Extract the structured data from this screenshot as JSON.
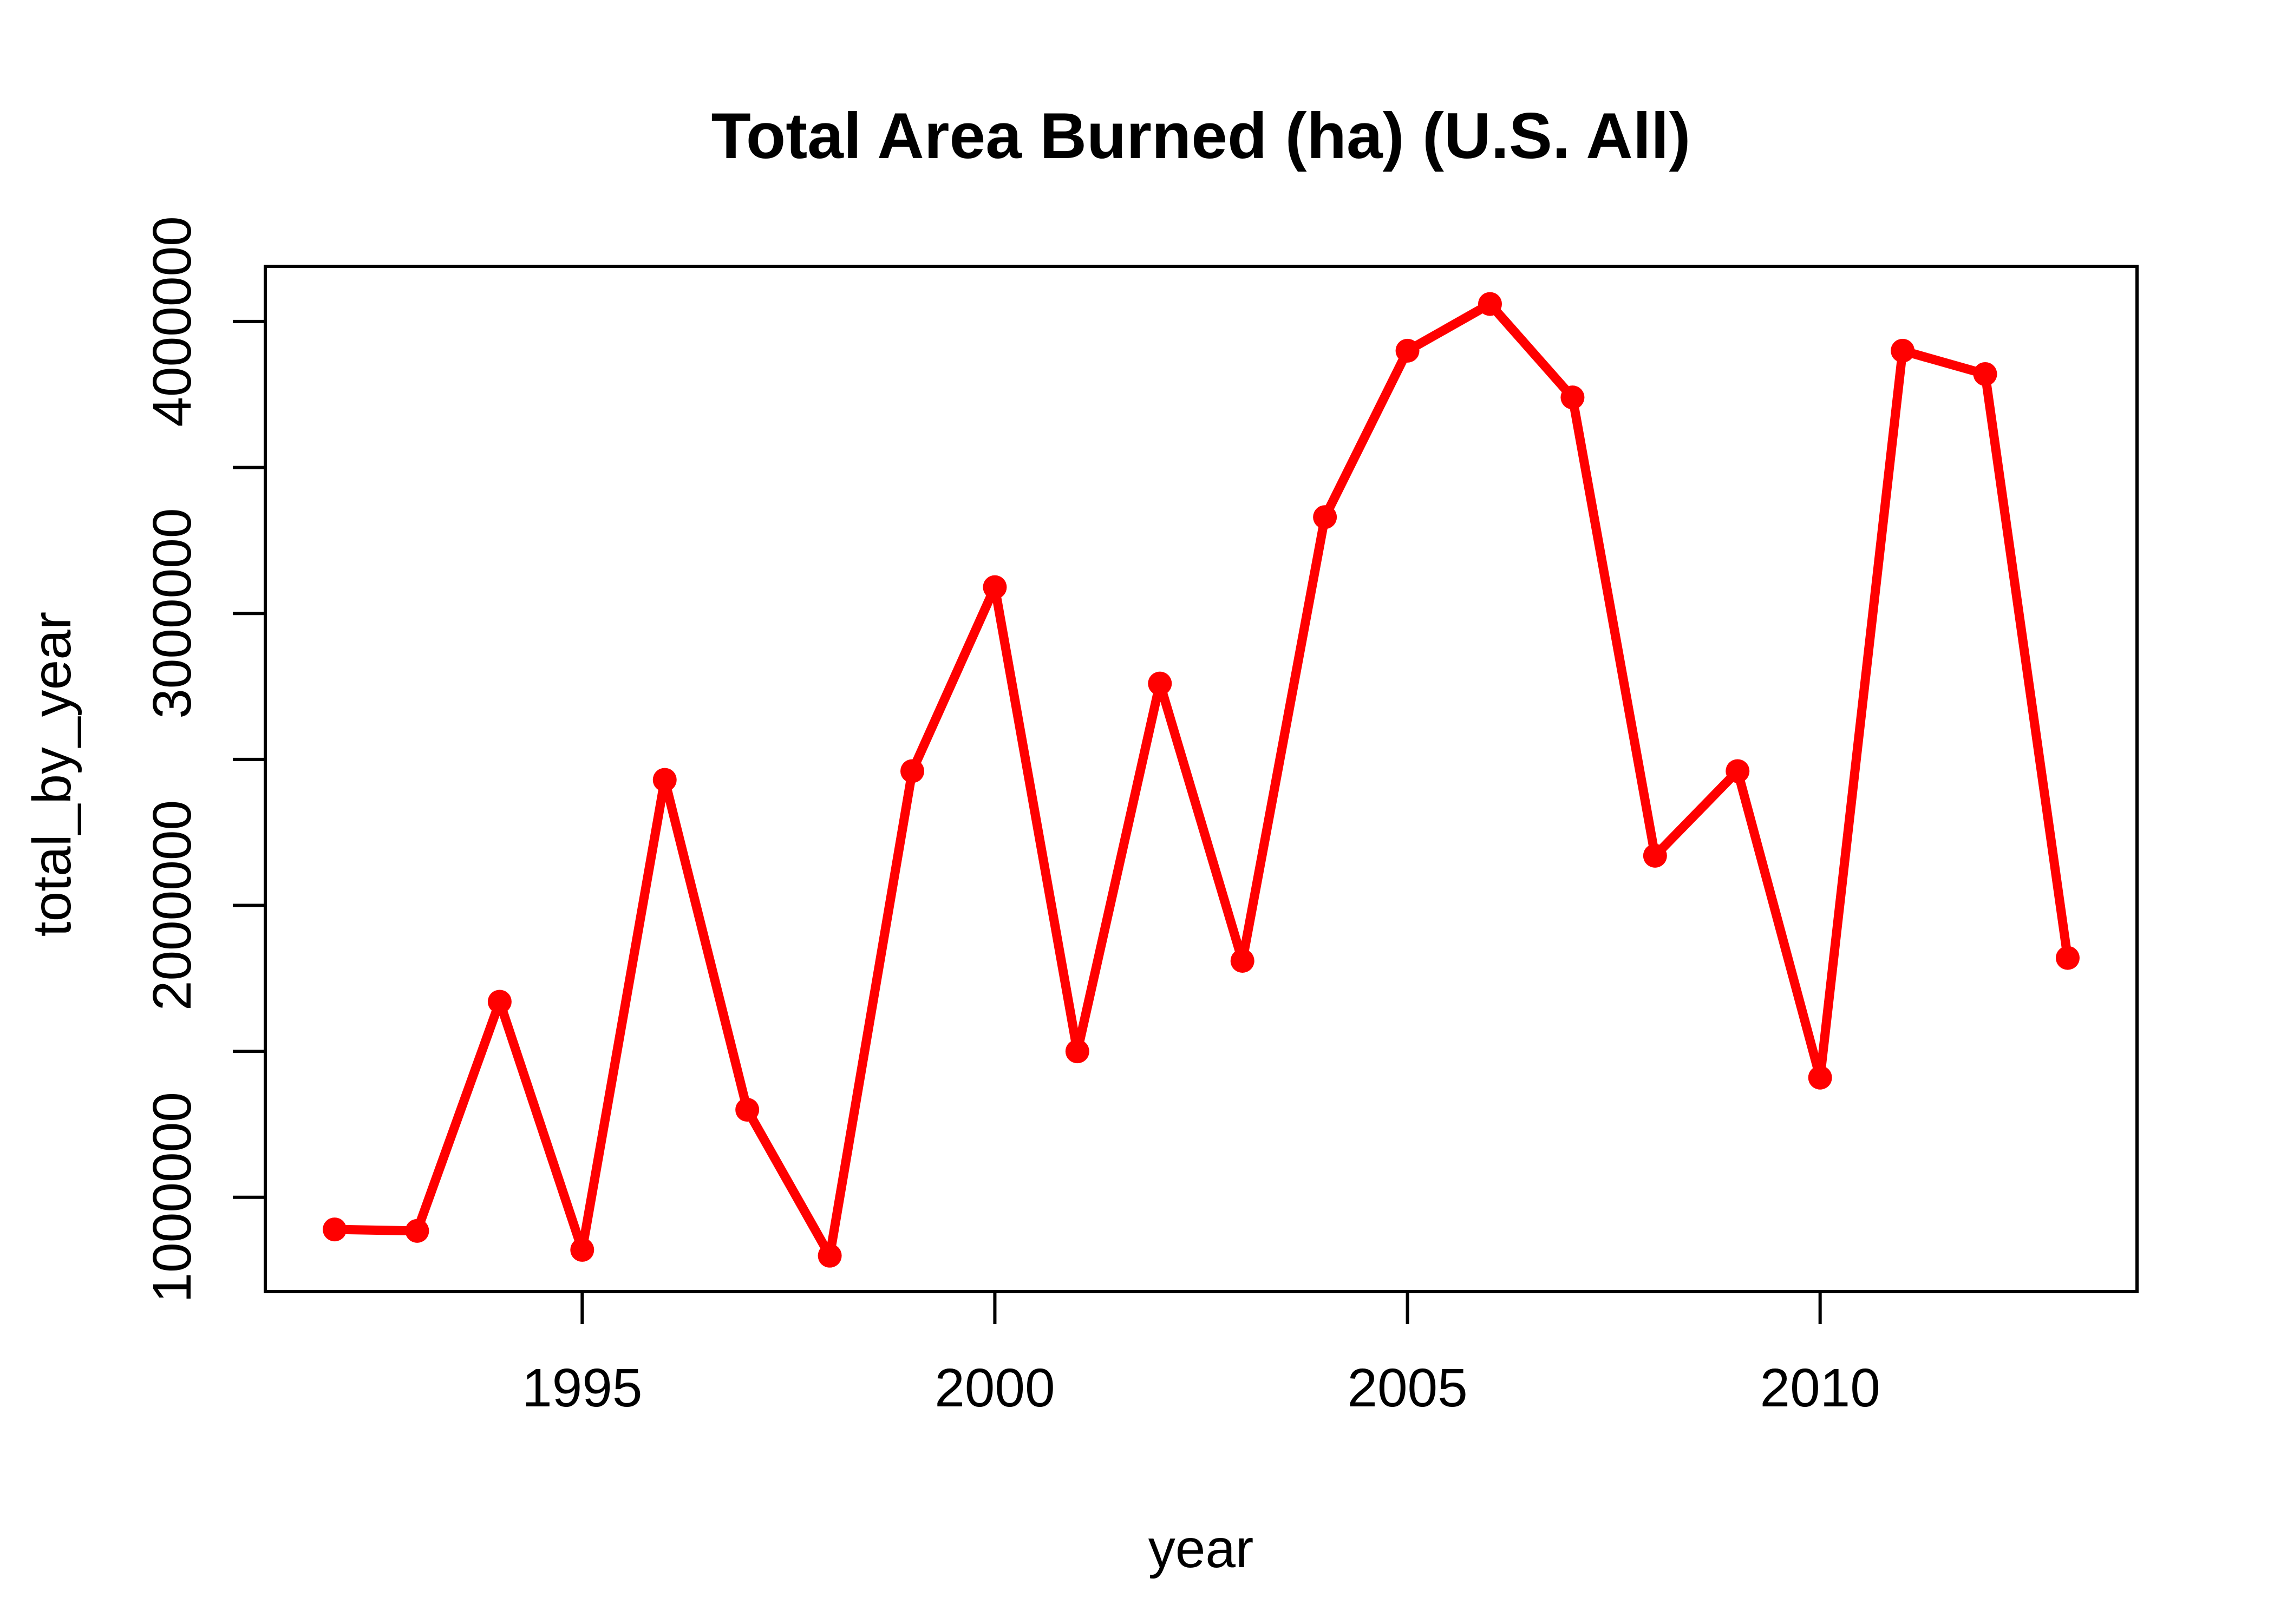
{
  "chart": {
    "title": "Total Area Burned (ha) (U.S. All)",
    "xlabel": "year",
    "ylabel": "total_by_year"
  },
  "chart_data": {
    "type": "line",
    "title": "Total Area Burned (ha) (U.S. All)",
    "xlabel": "year",
    "ylabel": "total_by_year",
    "legend": null,
    "grid": false,
    "line_color": "#FF0000",
    "marker": "filled-circle",
    "axis_color": "#000000",
    "background_color": "#FFFFFF",
    "x": [
      1992,
      1993,
      1994,
      1995,
      1996,
      1997,
      1998,
      1999,
      2000,
      2001,
      2002,
      2003,
      2004,
      2005,
      2006,
      2007,
      2008,
      2009,
      2010,
      2011,
      2012,
      2013
    ],
    "y": [
      890000,
      885000,
      1670000,
      820000,
      2430000,
      1300000,
      800000,
      2460000,
      3090000,
      1500000,
      2760000,
      1810000,
      3330000,
      3900000,
      4060000,
      3740000,
      2170000,
      2460000,
      1410000,
      3900000,
      3820000,
      1820000
    ],
    "xlim": [
      1991.16,
      2013.84
    ],
    "ylim": [
      677000,
      4189000
    ],
    "x_ticks": {
      "values": [
        1995,
        2000,
        2005,
        2010
      ],
      "labels": [
        "1995",
        "2000",
        "2005",
        "2010"
      ]
    },
    "y_ticks": {
      "values": [
        1000000,
        1500000,
        2000000,
        2500000,
        3000000,
        3500000,
        4000000
      ],
      "labels": [
        "1000000",
        "",
        "2000000",
        "",
        "3000000",
        "",
        "4000000"
      ]
    }
  }
}
